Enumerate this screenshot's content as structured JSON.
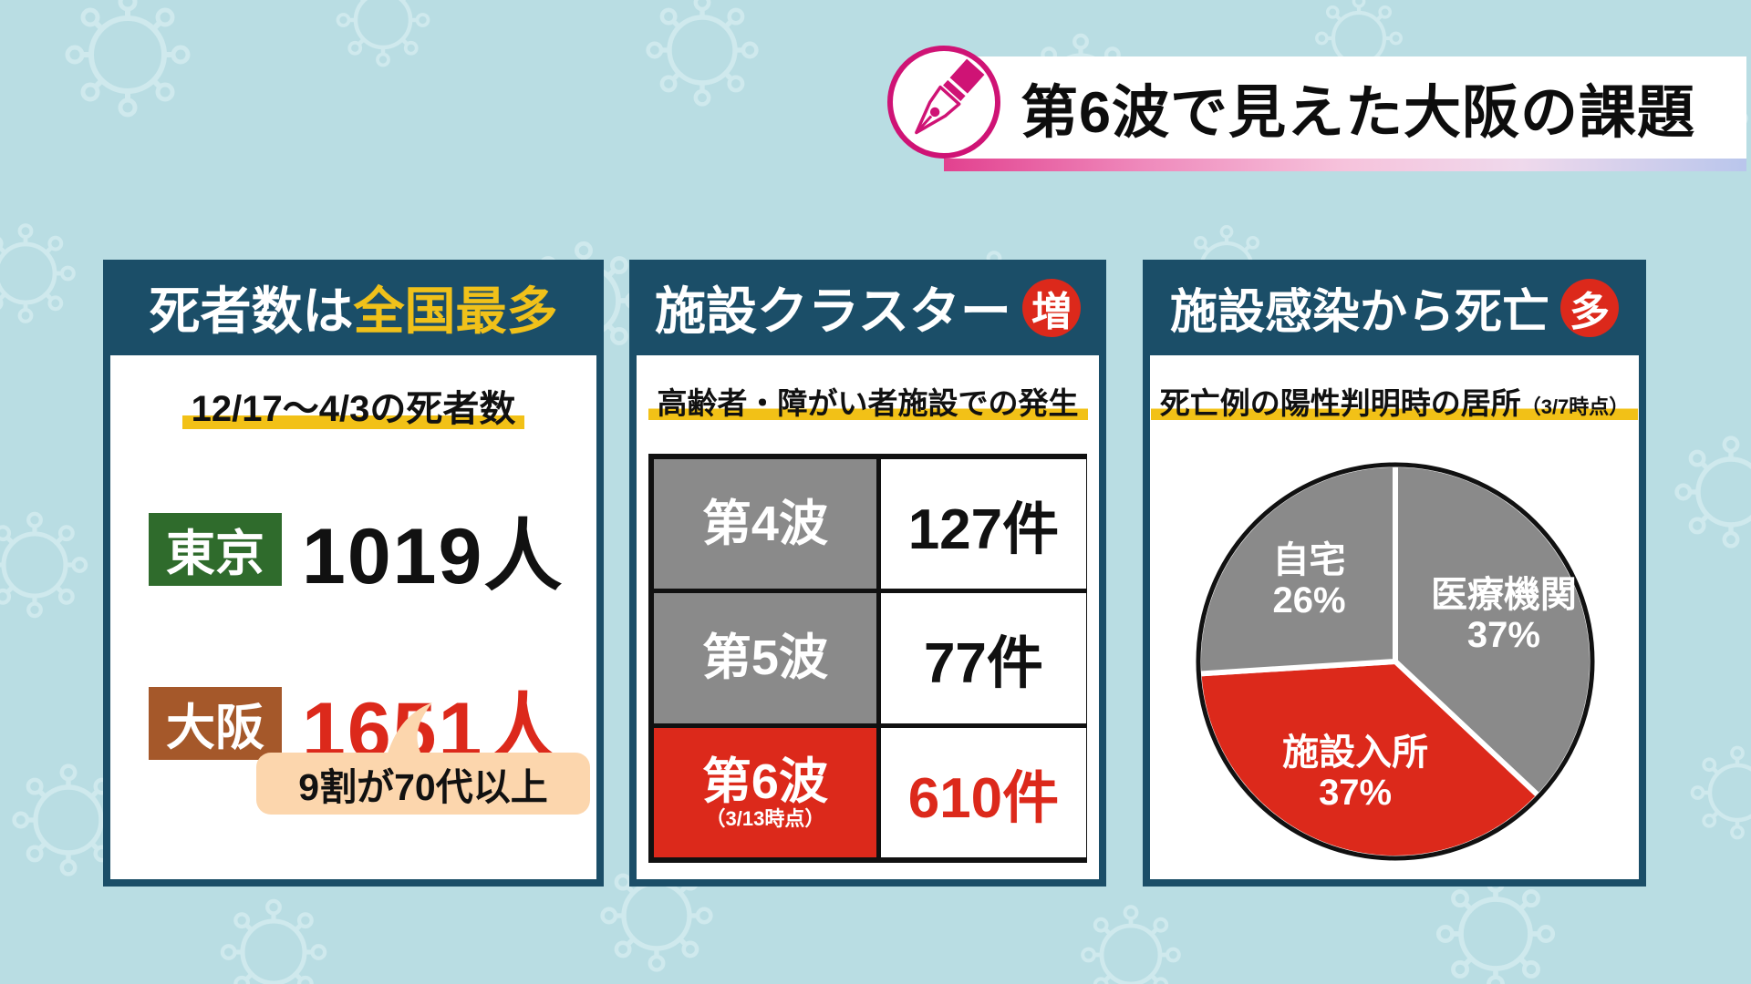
{
  "title": {
    "bar_text": "第6波で見えた大阪の課題"
  },
  "icons": {
    "title_icon": "pen-nib-icon",
    "background_pattern": "virus-outline-icon"
  },
  "colors": {
    "background": "#b9dde3",
    "panel_header_teal": "#1b4e68",
    "accent_yellow": "#f0c11a",
    "highlight_yellow": "#f2c117",
    "alert_red": "#dc291b",
    "tokyo_green": "#2f6b2c",
    "osaka_brown": "#a5582a",
    "bubble_peach": "#fcd6ad",
    "cell_gray": "#8a8a8a",
    "pen_magenta": "#cf1375"
  },
  "panels": {
    "deaths": {
      "header_white": "死者数は",
      "header_yellow": "全国最多",
      "subtitle": "12/17〜4/3の死者数",
      "rows": [
        {
          "label": "東京",
          "value": "1019人",
          "label_bg": "#2f6b2c",
          "value_color": "#111111"
        },
        {
          "label": "大阪",
          "value": "1651人",
          "label_bg": "#a5582a",
          "value_color": "#dc291b"
        }
      ],
      "callout": "9割が70代以上"
    },
    "clusters": {
      "header": "施設クラスター",
      "badge": "増",
      "subtitle": "高齢者・障がい者施設での発生",
      "table_rows": [
        {
          "label": "第4波",
          "note": "",
          "value": "127件",
          "highlight": false
        },
        {
          "label": "第5波",
          "note": "",
          "value": "77件",
          "highlight": false
        },
        {
          "label": "第6波",
          "note": "（3/13時点）",
          "value": "610件",
          "highlight": true
        }
      ]
    },
    "facility_deaths": {
      "header": "施設感染から死亡",
      "badge": "多",
      "subtitle": "死亡例の陽性判明時の居所",
      "subtitle_note": "（3/7時点）"
    }
  },
  "chart_data": {
    "type": "pie",
    "title": "死亡例の陽性判明時の居所（3/7時点）",
    "labels": [
      "医療機関",
      "施設入所",
      "自宅"
    ],
    "values": [
      37,
      37,
      26
    ],
    "unit": "%",
    "colors": [
      "#8a8a8a",
      "#dc291b",
      "#8a8a8a"
    ],
    "start": "top",
    "direction": "clockwise",
    "label_position": "inside",
    "divider_color": "#ffffff",
    "outline_color": "#111111"
  }
}
